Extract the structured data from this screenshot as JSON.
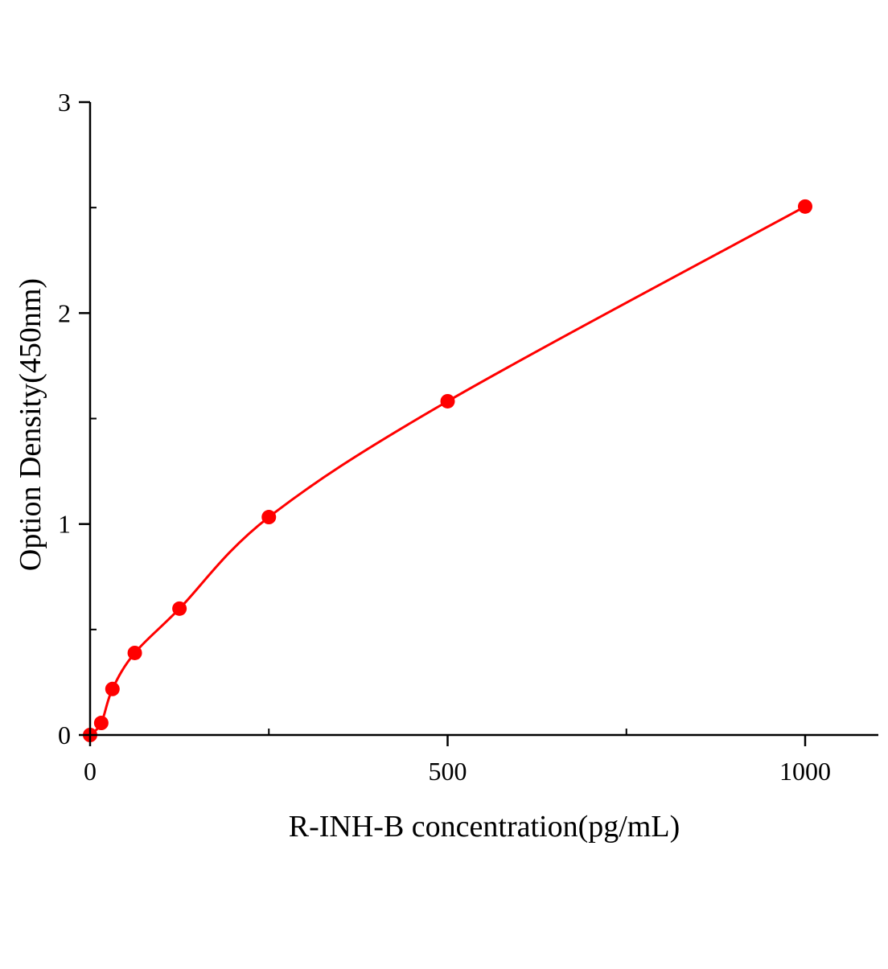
{
  "chart_data": {
    "type": "scatter",
    "xlabel": "R-INH-B concentration(pg/mL)",
    "ylabel": "Option Density(450nm)",
    "xlim": [
      0,
      1100
    ],
    "ylim": [
      0,
      3
    ],
    "x_ticks": [
      0,
      500,
      1000
    ],
    "x_tick_labels": [
      "0",
      "500",
      "1000"
    ],
    "x_minor_ticks": [
      250,
      750
    ],
    "y_ticks": [
      0,
      1,
      2,
      3
    ],
    "y_tick_labels": [
      "0",
      "1",
      "2",
      "3"
    ],
    "y_minor_ticks": [
      0.5,
      1.5,
      2.5
    ],
    "grid": false,
    "series": [
      {
        "x": [
          0,
          15.6,
          31.25,
          62.5,
          125,
          250,
          500,
          1000
        ],
        "y": [
          0.0,
          0.057,
          0.218,
          0.389,
          0.599,
          1.033,
          1.582,
          2.505
        ],
        "marker": "circle",
        "fit_line": true,
        "color": "#ff0000"
      }
    ]
  }
}
